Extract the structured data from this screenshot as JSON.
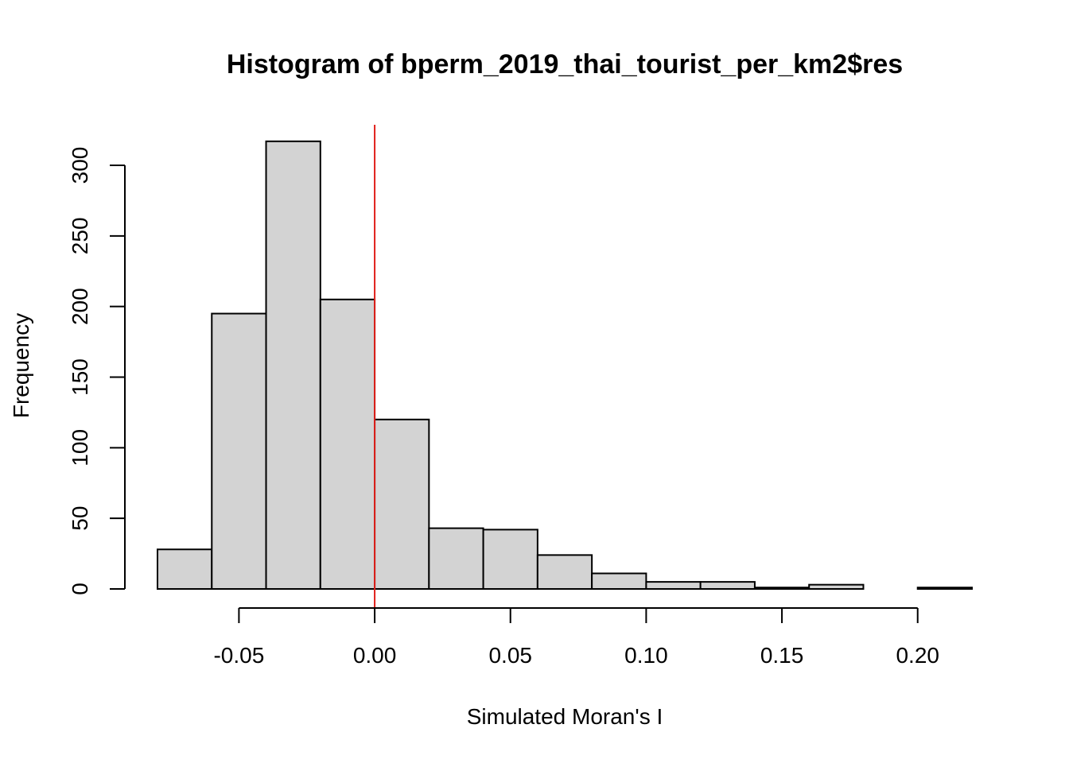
{
  "chart_data": {
    "type": "bar",
    "title": "Histogram of bperm_2019_thai_tourist_per_km2$res",
    "xlabel": "Simulated Moran's I",
    "ylabel": "Frequency",
    "bins": [
      {
        "start": -0.08,
        "end": -0.06,
        "count": 28
      },
      {
        "start": -0.06,
        "end": -0.04,
        "count": 195
      },
      {
        "start": -0.04,
        "end": -0.02,
        "count": 317
      },
      {
        "start": -0.02,
        "end": 0.0,
        "count": 205
      },
      {
        "start": 0.0,
        "end": 0.02,
        "count": 120
      },
      {
        "start": 0.02,
        "end": 0.04,
        "count": 43
      },
      {
        "start": 0.04,
        "end": 0.06,
        "count": 42
      },
      {
        "start": 0.06,
        "end": 0.08,
        "count": 24
      },
      {
        "start": 0.08,
        "end": 0.1,
        "count": 11
      },
      {
        "start": 0.1,
        "end": 0.12,
        "count": 5
      },
      {
        "start": 0.12,
        "end": 0.14,
        "count": 5
      },
      {
        "start": 0.14,
        "end": 0.16,
        "count": 1
      },
      {
        "start": 0.16,
        "end": 0.18,
        "count": 3
      },
      {
        "start": 0.18,
        "end": 0.2,
        "count": 0
      },
      {
        "start": 0.2,
        "end": 0.22,
        "count": 1
      }
    ],
    "x_ticks": [
      {
        "value": -0.05,
        "label": "-0.05"
      },
      {
        "value": 0.0,
        "label": "0.00"
      },
      {
        "value": 0.05,
        "label": "0.05"
      },
      {
        "value": 0.1,
        "label": "0.10"
      },
      {
        "value": 0.15,
        "label": "0.15"
      },
      {
        "value": 0.2,
        "label": "0.20"
      }
    ],
    "y_ticks": [
      {
        "value": 0,
        "label": "0"
      },
      {
        "value": 50,
        "label": "50"
      },
      {
        "value": 100,
        "label": "100"
      },
      {
        "value": 150,
        "label": "150"
      },
      {
        "value": 200,
        "label": "200"
      },
      {
        "value": 250,
        "label": "250"
      },
      {
        "value": 300,
        "label": "300"
      }
    ],
    "xlim": [
      -0.08,
      0.22
    ],
    "ylim": [
      0,
      330
    ],
    "reference_line": {
      "x": 0.0,
      "color": "#e0201b"
    },
    "bar_fill": "#d3d3d3",
    "bar_stroke": "#000000",
    "grid": false,
    "legend": "none"
  }
}
